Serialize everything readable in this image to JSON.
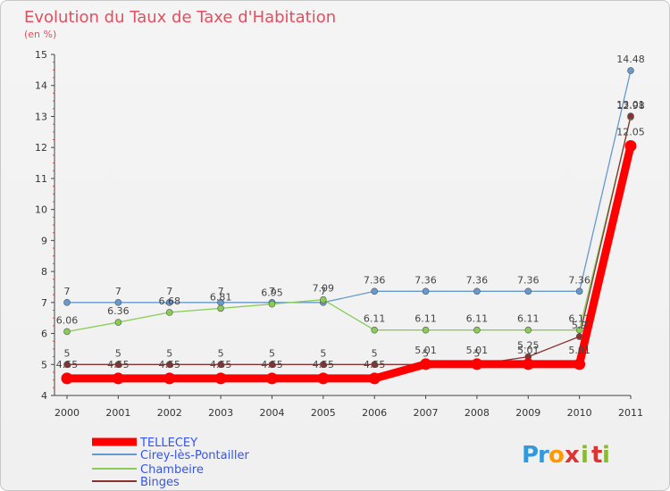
{
  "chart_data": {
    "type": "line",
    "title": "Evolution du Taux de Taxe d'Habitation",
    "subtitle": "(en %)",
    "x": [
      "2000",
      "2001",
      "2002",
      "2003",
      "2004",
      "2005",
      "2006",
      "2007",
      "2008",
      "2009",
      "2010",
      "2011"
    ],
    "ylim": [
      4,
      15
    ],
    "yticks": [
      "4",
      "5",
      "6",
      "7",
      "8",
      "9",
      "10",
      "11",
      "12",
      "13",
      "14",
      "15"
    ],
    "grid": false,
    "legend_position": "bottom-left",
    "series": [
      {
        "name": "TELLECEY",
        "color": "#ff0000",
        "values": [
          4.55,
          4.55,
          4.55,
          4.55,
          4.55,
          4.55,
          4.55,
          5.01,
          5.01,
          5.01,
          5.01,
          12.05
        ],
        "labels": [
          "4.55",
          "4.55",
          "4.55",
          "4.55",
          "4.55",
          "4.55",
          "4.55",
          "5.01",
          "5.01",
          "5.01",
          "5.01",
          "12.05"
        ]
      },
      {
        "name": "Cirey-lès-Pontailler",
        "color": "#6699cc",
        "values": [
          7,
          7,
          7,
          7,
          7,
          7,
          7.36,
          7.36,
          7.36,
          7.36,
          7.36,
          14.48
        ],
        "labels": [
          "7",
          "7",
          "7",
          "7",
          "7",
          "7",
          "7.36",
          "7.36",
          "7.36",
          "7.36",
          "7.36",
          "14.48"
        ]
      },
      {
        "name": "Chambeire",
        "color": "#88cc55",
        "values": [
          6.06,
          6.36,
          6.68,
          6.81,
          6.95,
          7.09,
          6.11,
          6.11,
          6.11,
          6.11,
          6.11,
          12.98
        ],
        "labels": [
          "6.06",
          "6.36",
          "6.68",
          "6.81",
          "6.95",
          "7.09",
          "6.11",
          "6.11",
          "6.11",
          "6.11",
          "6.11",
          "12.98"
        ]
      },
      {
        "name": "Binges",
        "color": "#883333",
        "values": [
          5,
          5,
          5,
          5,
          5,
          5,
          5,
          5,
          5,
          5.25,
          5.9,
          13.01
        ],
        "labels": [
          "5",
          "5",
          "5",
          "5",
          "5",
          "5",
          "5",
          "5",
          "5",
          "5.25",
          "5.9",
          "13.01"
        ]
      }
    ]
  },
  "logo": {
    "letters": [
      "P",
      "r",
      "o",
      "x",
      "i",
      "t",
      "i"
    ],
    "colors": [
      "#3399dd",
      "#3399dd",
      "#ff9900",
      "#dd3333",
      "#88bb33",
      "#dd3333",
      "#88bb33"
    ]
  }
}
